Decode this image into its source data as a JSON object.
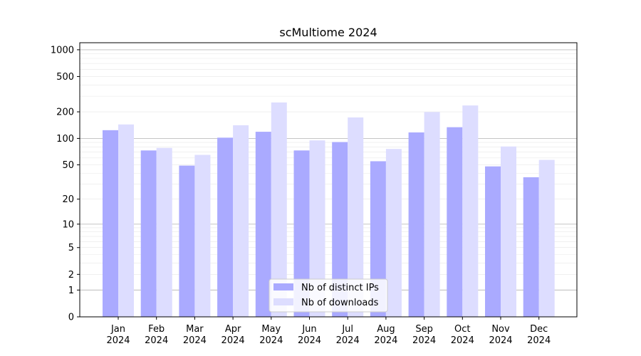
{
  "chart_data": {
    "type": "bar",
    "title": "scMultiome 2024",
    "xlabel": "",
    "ylabel": "",
    "yscale": "log1p",
    "ylim": [
      0,
      1200
    ],
    "yticks": [
      0,
      1,
      2,
      5,
      10,
      20,
      50,
      100,
      200,
      500,
      1000
    ],
    "ytick_labels": [
      "0",
      "1",
      "2",
      "5",
      "10",
      "20",
      "50",
      "100",
      "200",
      "500",
      "1000"
    ],
    "categories": [
      "Jan\n2024",
      "Feb\n2024",
      "Mar\n2024",
      "Apr\n2024",
      "May\n2024",
      "Jun\n2024",
      "Jul\n2024",
      "Aug\n2024",
      "Sep\n2024",
      "Oct\n2024",
      "Nov\n2024",
      "Dec\n2024"
    ],
    "series": [
      {
        "name": "Nb of distinct IPs",
        "color": "#aaaaff",
        "values": [
          124,
          73,
          49,
          102,
          119,
          73,
          91,
          55,
          117,
          134,
          48,
          36
        ]
      },
      {
        "name": "Nb of downloads",
        "color": "#ddddff",
        "values": [
          144,
          78,
          65,
          141,
          255,
          95,
          173,
          76,
          199,
          236,
          81,
          57
        ]
      }
    ],
    "grid": true,
    "legend": "bottom-center"
  }
}
